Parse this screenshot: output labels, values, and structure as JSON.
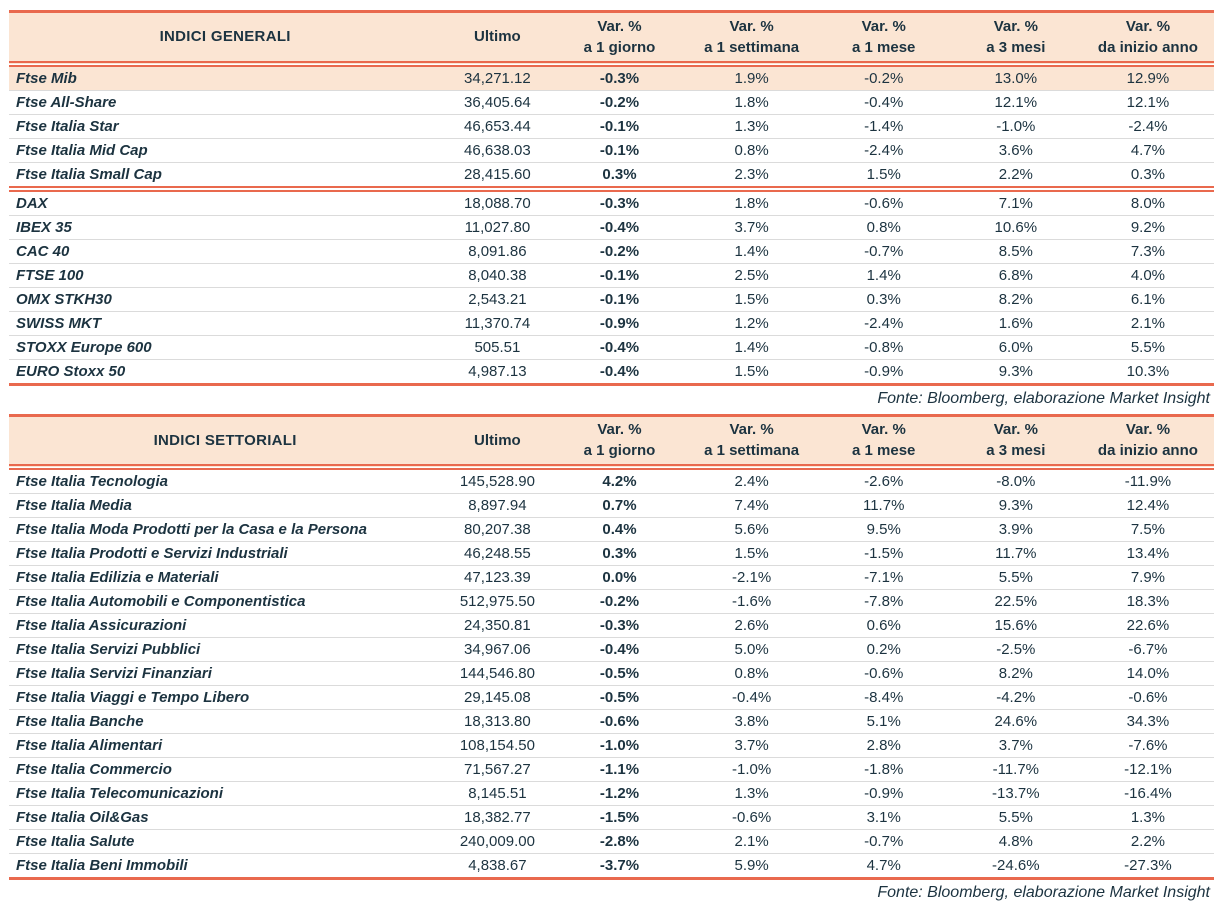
{
  "colors": {
    "accent_border": "#E9694E",
    "header_background": "#FBE5D3",
    "text": "#1C3340",
    "row_divider": "#DBDBDB"
  },
  "tables": [
    {
      "title": "INDICI GENERALI",
      "ultimo_label": "Ultimo",
      "var_headers": [
        [
          "Var. %",
          "a 1 giorno"
        ],
        [
          "Var. %",
          "a 1 settimana"
        ],
        [
          "Var. %",
          "a 1 mese"
        ],
        [
          "Var. %",
          "a 3 mesi"
        ],
        [
          "Var. %",
          "da inizio anno"
        ]
      ],
      "highlight_first_row": true,
      "footer": "Fonte: Bloomberg, elaborazione Market Insight",
      "groups": [
        {
          "rows": [
            [
              "Ftse Mib",
              "34,271.12",
              "-0.3%",
              "1.9%",
              "-0.2%",
              "13.0%",
              "12.9%"
            ],
            [
              "Ftse All-Share",
              "36,405.64",
              "-0.2%",
              "1.8%",
              "-0.4%",
              "12.1%",
              "12.1%"
            ],
            [
              "Ftse Italia Star",
              "46,653.44",
              "-0.1%",
              "1.3%",
              "-1.4%",
              "-1.0%",
              "-2.4%"
            ],
            [
              "Ftse Italia Mid Cap",
              "46,638.03",
              "-0.1%",
              "0.8%",
              "-2.4%",
              "3.6%",
              "4.7%"
            ],
            [
              "Ftse Italia Small Cap",
              "28,415.60",
              "0.3%",
              "2.3%",
              "1.5%",
              "2.2%",
              "0.3%"
            ]
          ]
        },
        {
          "rows": [
            [
              "DAX",
              "18,088.70",
              "-0.3%",
              "1.8%",
              "-0.6%",
              "7.1%",
              "8.0%"
            ],
            [
              "IBEX 35",
              "11,027.80",
              "-0.4%",
              "3.7%",
              "0.8%",
              "10.6%",
              "9.2%"
            ],
            [
              "CAC 40",
              "8,091.86",
              "-0.2%",
              "1.4%",
              "-0.7%",
              "8.5%",
              "7.3%"
            ],
            [
              "FTSE 100",
              "8,040.38",
              "-0.1%",
              "2.5%",
              "1.4%",
              "6.8%",
              "4.0%"
            ],
            [
              "OMX STKH30",
              "2,543.21",
              "-0.1%",
              "1.5%",
              "0.3%",
              "8.2%",
              "6.1%"
            ],
            [
              "SWISS MKT",
              "11,370.74",
              "-0.9%",
              "1.2%",
              "-2.4%",
              "1.6%",
              "2.1%"
            ],
            [
              "STOXX Europe 600",
              "505.51",
              "-0.4%",
              "1.4%",
              "-0.8%",
              "6.0%",
              "5.5%"
            ],
            [
              "EURO Stoxx 50",
              "4,987.13",
              "-0.4%",
              "1.5%",
              "-0.9%",
              "9.3%",
              "10.3%"
            ]
          ]
        }
      ]
    },
    {
      "title": "INDICI SETTORIALI",
      "ultimo_label": "Ultimo",
      "var_headers": [
        [
          "Var. %",
          "a 1 giorno"
        ],
        [
          "Var. %",
          "a 1 settimana"
        ],
        [
          "Var. %",
          "a 1 mese"
        ],
        [
          "Var. %",
          "a 3 mesi"
        ],
        [
          "Var. %",
          "da inizio anno"
        ]
      ],
      "highlight_first_row": false,
      "footer": "Fonte: Bloomberg, elaborazione Market Insight",
      "groups": [
        {
          "rows": [
            [
              "Ftse Italia Tecnologia",
              "145,528.90",
              "4.2%",
              "2.4%",
              "-2.6%",
              "-8.0%",
              "-11.9%"
            ],
            [
              "Ftse Italia Media",
              "8,897.94",
              "0.7%",
              "7.4%",
              "11.7%",
              "9.3%",
              "12.4%"
            ],
            [
              "Ftse Italia Moda Prodotti per la Casa e la Persona",
              "80,207.38",
              "0.4%",
              "5.6%",
              "9.5%",
              "3.9%",
              "7.5%"
            ],
            [
              "Ftse Italia Prodotti e Servizi Industriali",
              "46,248.55",
              "0.3%",
              "1.5%",
              "-1.5%",
              "11.7%",
              "13.4%"
            ],
            [
              "Ftse Italia Edilizia e Materiali",
              "47,123.39",
              "0.0%",
              "-2.1%",
              "-7.1%",
              "5.5%",
              "7.9%"
            ],
            [
              "Ftse Italia Automobili e Componentistica",
              "512,975.50",
              "-0.2%",
              "-1.6%",
              "-7.8%",
              "22.5%",
              "18.3%"
            ],
            [
              "Ftse Italia Assicurazioni",
              "24,350.81",
              "-0.3%",
              "2.6%",
              "0.6%",
              "15.6%",
              "22.6%"
            ],
            [
              "Ftse Italia Servizi Pubblici",
              "34,967.06",
              "-0.4%",
              "5.0%",
              "0.2%",
              "-2.5%",
              "-6.7%"
            ],
            [
              "Ftse Italia Servizi Finanziari",
              "144,546.80",
              "-0.5%",
              "0.8%",
              "-0.6%",
              "8.2%",
              "14.0%"
            ],
            [
              "Ftse Italia Viaggi e Tempo Libero",
              "29,145.08",
              "-0.5%",
              "-0.4%",
              "-8.4%",
              "-4.2%",
              "-0.6%"
            ],
            [
              "Ftse Italia Banche",
              "18,313.80",
              "-0.6%",
              "3.8%",
              "5.1%",
              "24.6%",
              "34.3%"
            ],
            [
              "Ftse Italia Alimentari",
              "108,154.50",
              "-1.0%",
              "3.7%",
              "2.8%",
              "3.7%",
              "-7.6%"
            ],
            [
              "Ftse Italia Commercio",
              "71,567.27",
              "-1.1%",
              "-1.0%",
              "-1.8%",
              "-11.7%",
              "-12.1%"
            ],
            [
              "Ftse Italia Telecomunicazioni",
              "8,145.51",
              "-1.2%",
              "1.3%",
              "-0.9%",
              "-13.7%",
              "-16.4%"
            ],
            [
              "Ftse Italia Oil&Gas",
              "18,382.77",
              "-1.5%",
              "-0.6%",
              "3.1%",
              "5.5%",
              "1.3%"
            ],
            [
              "Ftse Italia Salute",
              "240,009.00",
              "-2.8%",
              "2.1%",
              "-0.7%",
              "4.8%",
              "2.2%"
            ],
            [
              "Ftse Italia Beni Immobili",
              "4,838.67",
              "-3.7%",
              "5.9%",
              "4.7%",
              "-24.6%",
              "-27.3%"
            ]
          ]
        }
      ]
    }
  ]
}
